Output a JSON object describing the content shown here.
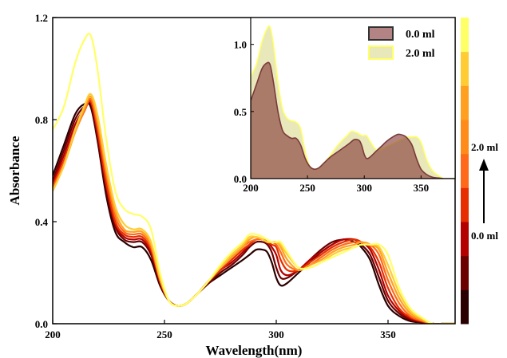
{
  "chart_data": [
    {
      "type": "line",
      "xlabel": "Wavelength(nm)",
      "ylabel": "Absorbance",
      "xlim": [
        200,
        380
      ],
      "ylim": [
        0,
        1.2
      ],
      "xticks": [
        200,
        250,
        300,
        350
      ],
      "yticks": [
        0.0,
        0.4,
        0.8,
        1.2
      ],
      "tick_labels_x": [
        "200",
        "250",
        "300",
        "350"
      ],
      "tick_labels_y": [
        "0.0",
        "0.4",
        "0.8",
        "1.2"
      ],
      "grid": false,
      "x": [
        200,
        205,
        210,
        214,
        217,
        220,
        224,
        228,
        232,
        236,
        240,
        244,
        248,
        252,
        256,
        260,
        265,
        270,
        275,
        280,
        285,
        288,
        291,
        294,
        296,
        298,
        300,
        302,
        305,
        310,
        315,
        320,
        325,
        330,
        335,
        338,
        342,
        346,
        350,
        355,
        360,
        365,
        370,
        375,
        380
      ],
      "series": [
        {
          "color": "#2b0000",
          "values": [
            0.58,
            0.7,
            0.82,
            0.86,
            0.85,
            0.72,
            0.5,
            0.36,
            0.32,
            0.3,
            0.3,
            0.25,
            0.15,
            0.09,
            0.07,
            0.08,
            0.12,
            0.16,
            0.19,
            0.22,
            0.25,
            0.27,
            0.29,
            0.29,
            0.28,
            0.24,
            0.18,
            0.15,
            0.16,
            0.2,
            0.24,
            0.28,
            0.31,
            0.33,
            0.32,
            0.3,
            0.25,
            0.15,
            0.07,
            0.03,
            0.01,
            0.005,
            0.0,
            0.0,
            0.0
          ]
        },
        {
          "color": "#6b0000",
          "values": [
            0.56,
            0.68,
            0.8,
            0.85,
            0.86,
            0.73,
            0.52,
            0.38,
            0.33,
            0.32,
            0.32,
            0.27,
            0.16,
            0.09,
            0.07,
            0.08,
            0.12,
            0.16,
            0.2,
            0.23,
            0.27,
            0.3,
            0.32,
            0.32,
            0.31,
            0.28,
            0.22,
            0.18,
            0.18,
            0.21,
            0.25,
            0.29,
            0.32,
            0.33,
            0.33,
            0.31,
            0.27,
            0.18,
            0.09,
            0.04,
            0.015,
            0.005,
            0.0,
            0.0,
            0.0
          ]
        },
        {
          "color": "#b30000",
          "values": [
            0.55,
            0.66,
            0.78,
            0.84,
            0.87,
            0.75,
            0.54,
            0.39,
            0.34,
            0.33,
            0.33,
            0.28,
            0.16,
            0.09,
            0.07,
            0.08,
            0.12,
            0.17,
            0.21,
            0.24,
            0.28,
            0.31,
            0.33,
            0.33,
            0.32,
            0.3,
            0.27,
            0.21,
            0.19,
            0.21,
            0.25,
            0.28,
            0.31,
            0.33,
            0.33,
            0.32,
            0.29,
            0.21,
            0.11,
            0.05,
            0.02,
            0.008,
            0.0,
            0.0,
            0.0
          ]
        },
        {
          "color": "#e62e00",
          "values": [
            0.54,
            0.64,
            0.76,
            0.83,
            0.87,
            0.76,
            0.55,
            0.4,
            0.35,
            0.34,
            0.34,
            0.29,
            0.17,
            0.09,
            0.07,
            0.08,
            0.12,
            0.17,
            0.21,
            0.25,
            0.29,
            0.31,
            0.33,
            0.33,
            0.32,
            0.31,
            0.3,
            0.25,
            0.21,
            0.21,
            0.24,
            0.27,
            0.3,
            0.32,
            0.33,
            0.32,
            0.3,
            0.24,
            0.14,
            0.06,
            0.025,
            0.01,
            0.0,
            0.0,
            0.0
          ]
        },
        {
          "color": "#ff6a1a",
          "values": [
            0.53,
            0.63,
            0.75,
            0.83,
            0.88,
            0.78,
            0.58,
            0.42,
            0.36,
            0.35,
            0.35,
            0.3,
            0.17,
            0.09,
            0.07,
            0.08,
            0.12,
            0.17,
            0.22,
            0.26,
            0.3,
            0.32,
            0.33,
            0.33,
            0.32,
            0.32,
            0.31,
            0.28,
            0.23,
            0.21,
            0.23,
            0.26,
            0.29,
            0.31,
            0.32,
            0.32,
            0.31,
            0.27,
            0.17,
            0.08,
            0.03,
            0.012,
            0.0,
            0.0,
            0.0
          ]
        },
        {
          "color": "#ffa020",
          "values": [
            0.52,
            0.62,
            0.75,
            0.84,
            0.89,
            0.8,
            0.6,
            0.44,
            0.37,
            0.36,
            0.36,
            0.31,
            0.18,
            0.09,
            0.07,
            0.08,
            0.12,
            0.17,
            0.22,
            0.26,
            0.3,
            0.33,
            0.34,
            0.33,
            0.32,
            0.32,
            0.32,
            0.3,
            0.25,
            0.21,
            0.23,
            0.25,
            0.28,
            0.3,
            0.31,
            0.32,
            0.31,
            0.29,
            0.2,
            0.1,
            0.04,
            0.015,
            0.0,
            0.0,
            0.0
          ]
        },
        {
          "color": "#ffcc33",
          "values": [
            0.52,
            0.62,
            0.76,
            0.85,
            0.9,
            0.82,
            0.62,
            0.46,
            0.39,
            0.37,
            0.37,
            0.32,
            0.18,
            0.09,
            0.07,
            0.08,
            0.12,
            0.17,
            0.22,
            0.27,
            0.31,
            0.34,
            0.34,
            0.33,
            0.32,
            0.32,
            0.32,
            0.31,
            0.27,
            0.22,
            0.22,
            0.24,
            0.27,
            0.29,
            0.3,
            0.31,
            0.31,
            0.3,
            0.23,
            0.12,
            0.05,
            0.02,
            0.0,
            0.0,
            0.0
          ]
        },
        {
          "color": "#ffff66",
          "values": [
            0.76,
            0.85,
            1.02,
            1.11,
            1.13,
            1.0,
            0.72,
            0.52,
            0.45,
            0.43,
            0.42,
            0.37,
            0.2,
            0.09,
            0.07,
            0.08,
            0.12,
            0.17,
            0.23,
            0.28,
            0.32,
            0.35,
            0.35,
            0.34,
            0.33,
            0.32,
            0.32,
            0.32,
            0.28,
            0.22,
            0.22,
            0.24,
            0.26,
            0.28,
            0.3,
            0.31,
            0.31,
            0.31,
            0.27,
            0.14,
            0.06,
            0.025,
            0.0,
            0.0,
            0.0
          ]
        }
      ]
    },
    {
      "type": "area",
      "xlim": [
        200,
        380
      ],
      "ylim": [
        0,
        1.2
      ],
      "xticks": [
        200,
        250,
        300,
        350
      ],
      "yticks": [
        0.0,
        0.5,
        1.0
      ],
      "tick_labels_x": [
        "200",
        "250",
        "300",
        "350"
      ],
      "tick_labels_y": [
        "0.0",
        "0.5",
        "1.0"
      ],
      "grid": false,
      "legend_position": "top-right",
      "series": [
        {
          "name": "0.0 ml",
          "color": "#7a3a3a",
          "fill": "rgba(130,50,50,0.6)"
        },
        {
          "name": "2.0 ml",
          "color": "#ffff66",
          "fill": "rgba(220,220,150,0.65)"
        }
      ]
    }
  ],
  "colorbar": {
    "colors": [
      "#2b0000",
      "#6b0000",
      "#b30000",
      "#e62e00",
      "#ff6a1a",
      "#ff8c1a",
      "#ffa020",
      "#ffcc33",
      "#ffff66"
    ],
    "label_top": "2.0 ml",
    "label_bottom": "0.0 ml"
  }
}
